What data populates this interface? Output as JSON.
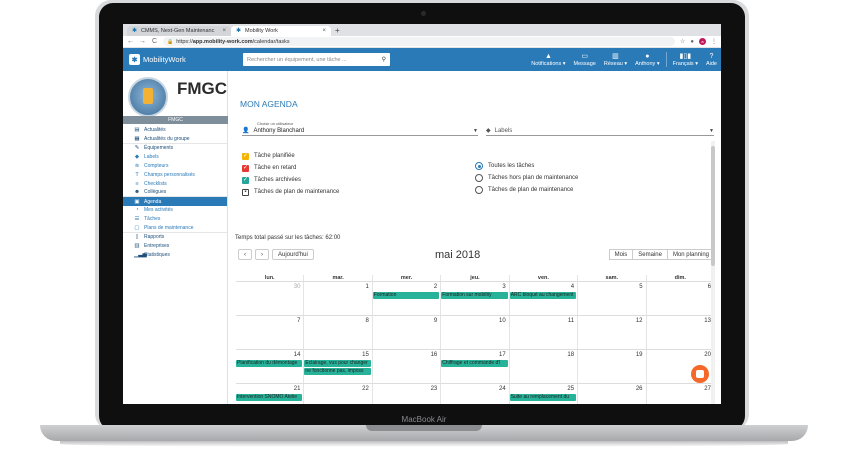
{
  "browser": {
    "tabs": [
      {
        "label": "CMMS, Next-Gen Maintenanc"
      },
      {
        "label": "Mobility Work"
      }
    ],
    "url_prefix": "https://",
    "url_host": "app.mobility-work.com",
    "url_path": "/calendar/tasks"
  },
  "header": {
    "logo_text": "MobilityWork",
    "search_placeholder": "Rechercher un équipement, une tâche ...",
    "nav": [
      {
        "label": "Notifications ▾",
        "icon": "bell-icon"
      },
      {
        "label": "Message",
        "icon": "chat-icon"
      },
      {
        "label": "Réseau ▾",
        "icon": "network-icon"
      },
      {
        "label": "Anthony ▾",
        "icon": "user-icon"
      },
      {
        "label": "Français ▾",
        "icon": "flag-icon"
      },
      {
        "label": "Aide",
        "icon": "help-icon"
      }
    ]
  },
  "sidebar": {
    "brand": "FMGC",
    "brand_sub": "FMGC",
    "items": [
      {
        "label": "Actualités",
        "icon": "news-icon"
      },
      {
        "label": "Actualités du groupe",
        "icon": "group-news-icon"
      },
      {
        "label": "Équipements",
        "icon": "wrench-icon"
      },
      {
        "label": "Labels",
        "icon": "tag-icon"
      },
      {
        "label": "Compteurs",
        "icon": "wifi-icon"
      },
      {
        "label": "Champs personnalisés",
        "icon": "text-icon"
      },
      {
        "label": "Checklists",
        "icon": "checklist-icon"
      },
      {
        "label": "Collègues",
        "icon": "people-icon"
      },
      {
        "label": "Agenda",
        "icon": "calendar-icon"
      },
      {
        "label": "Mes activités",
        "icon": "clock-icon"
      },
      {
        "label": "Tâches",
        "icon": "list-icon"
      },
      {
        "label": "Plans de maintenance",
        "icon": "plan-icon"
      },
      {
        "label": "Rapports",
        "icon": "report-icon"
      },
      {
        "label": "Entreprises",
        "icon": "building-icon"
      },
      {
        "label": "Statistiques",
        "icon": "stats-icon"
      }
    ]
  },
  "main": {
    "title": "MON AGENDA",
    "user_label": "Choisir un utilisateur",
    "user_value": "Anthony Blanchard",
    "labels_value": "Labels",
    "checks": [
      {
        "label": "Tâche planifiée",
        "color": "#f4b400"
      },
      {
        "label": "Tâche en retard",
        "color": "#e53935"
      },
      {
        "label": "Tâches archivées",
        "color": "#26a69a"
      },
      {
        "label": "Tâches de plan de maintenance",
        "color": "#ffffff"
      }
    ],
    "radios": [
      {
        "label": "Toutes les tâches",
        "selected": true
      },
      {
        "label": "Tâches hors plan de maintenance",
        "selected": false
      },
      {
        "label": "Tâches de plan de maintenance",
        "selected": false
      }
    ],
    "total_time": "Temps total passé sur les tâches: 62:00",
    "today_label": "Aujourd'hui",
    "month_title": "mai 2018",
    "views": [
      "Mois",
      "Semaine",
      "Mon planning"
    ]
  },
  "calendar": {
    "days": [
      "lun.",
      "mar.",
      "mer.",
      "jeu.",
      "ven.",
      "sam.",
      "dim."
    ],
    "weeks": [
      [
        "30",
        "1",
        "2",
        "3",
        "4",
        "5",
        "6"
      ],
      [
        "7",
        "8",
        "9",
        "10",
        "11",
        "12",
        "13"
      ],
      [
        "14",
        "15",
        "16",
        "17",
        "18",
        "19",
        "20"
      ],
      [
        "21",
        "22",
        "23",
        "24",
        "25",
        "26",
        "27"
      ]
    ],
    "events": [
      {
        "week": 0,
        "day": 2,
        "row": 0,
        "label": "Formation"
      },
      {
        "week": 0,
        "day": 3,
        "row": 0,
        "label": "Formation sur mobility"
      },
      {
        "week": 0,
        "day": 4,
        "row": 0,
        "label": "ARC bloqué au changement"
      },
      {
        "week": 2,
        "day": 0,
        "row": 0,
        "label": "Planification du démontage"
      },
      {
        "week": 2,
        "day": 1,
        "row": 0,
        "label": "Eclairage, vus pour changer"
      },
      {
        "week": 2,
        "day": 1,
        "row": 1,
        "label": "ne fonctionne pas, imposs"
      },
      {
        "week": 2,
        "day": 3,
        "row": 0,
        "label": "Chiffrage et commande d'l"
      },
      {
        "week": 3,
        "day": 0,
        "row": 0,
        "label": "Intervention SNOMO Atelie"
      },
      {
        "week": 3,
        "day": 4,
        "row": 0,
        "label": "Suite au remplacement du"
      }
    ]
  },
  "device": {
    "label": "MacBook Air"
  }
}
